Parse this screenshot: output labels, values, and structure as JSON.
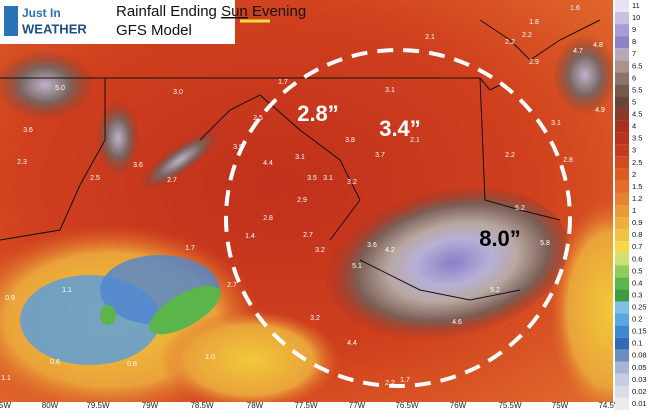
{
  "logo": {
    "line1": "Just In",
    "line2": "WEATHER"
  },
  "header": {
    "title_before": "Rainfall Ending ",
    "title_highlight": "Sun",
    "title_after": " Evening",
    "subtitle": "GFS Model"
  },
  "callouts": [
    "2.8”",
    "3.4”",
    "8.0”"
  ],
  "station_values": [
    "5.0",
    "3.6",
    "2.3",
    "2.5",
    "3.6",
    "3.0",
    "2.5",
    "3.9",
    "2.7",
    "4.4",
    "3.1",
    "2.9",
    "3.5",
    "3.1",
    "2.8",
    "2.7",
    "3.2",
    "3.2",
    "2.7",
    "1.7",
    "1.4",
    "1.1",
    "0.9",
    "0.6",
    "0.8",
    "1.0",
    "1.1",
    "4.4",
    "4.6",
    "5.2",
    "5.1",
    "3.6",
    "4.2",
    "5.2",
    "5.8",
    "2.2",
    "3.1",
    "2.8",
    "4.7",
    "4.8",
    "4.9",
    "2.9",
    "2.2",
    "1.8",
    "1.6",
    "2.2",
    "2.1",
    "1.7",
    "3.1",
    "3.7",
    "3.8",
    "3.2",
    "2.1",
    "1.7",
    "2.2"
  ],
  "longitudes": [
    "5W",
    "80W",
    "79.5W",
    "79W",
    "78.5W",
    "78W",
    "77.5W",
    "77W",
    "76.5W",
    "76W",
    "75.5W",
    "75W",
    "74.5W"
  ],
  "scale": {
    "labels": [
      11,
      10,
      9,
      8,
      7,
      6.5,
      6,
      5.5,
      5,
      4.5,
      4,
      3.5,
      3,
      2.5,
      2,
      1.5,
      1.2,
      1,
      0.9,
      0.8,
      0.7,
      0.6,
      0.5,
      0.4,
      0.3,
      0.25,
      0.2,
      0.15,
      0.1,
      0.08,
      0.05,
      0.03,
      0.02,
      0.01
    ],
    "colors": [
      "#e8e4f4",
      "#c9c0e6",
      "#a99bd6",
      "#8e80c4",
      "#b4aab8",
      "#a8948c",
      "#8e7468",
      "#76584c",
      "#6a4438",
      "#8a3a2a",
      "#a8301c",
      "#b8321c",
      "#c83a1e",
      "#d44a20",
      "#dc5c24",
      "#e26e2a",
      "#e88232",
      "#ec9a38",
      "#eeae3c",
      "#f0c440",
      "#f2d84a",
      "#cfe070",
      "#8fce5a",
      "#5ab54a",
      "#3a9e40",
      "#7ec0e8",
      "#5aa6de",
      "#3e88d0",
      "#2e6ab8",
      "#6c8cc0",
      "#a8b4d4",
      "#c8cce0",
      "#dcdce8",
      "#ececf0"
    ]
  }
}
